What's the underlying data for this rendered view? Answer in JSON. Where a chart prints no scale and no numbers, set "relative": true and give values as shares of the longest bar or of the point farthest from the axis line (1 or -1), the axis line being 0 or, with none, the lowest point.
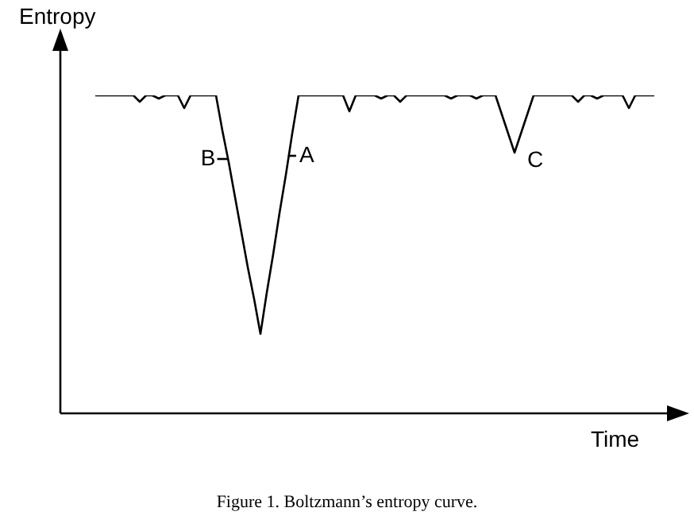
{
  "chart_data": {
    "type": "line",
    "relative": true,
    "xlabel": "Time",
    "ylabel": "Entropy",
    "marker": "none",
    "line_style": "solid",
    "categories": [
      null,
      null,
      null,
      null,
      null,
      null,
      null,
      null,
      null,
      null,
      null,
      null,
      null,
      null,
      null,
      null,
      null,
      null,
      null,
      null,
      null,
      null,
      null,
      null,
      null,
      null,
      null,
      null,
      null,
      null,
      null,
      null,
      null,
      null,
      null,
      null,
      null,
      null,
      null,
      null,
      null,
      null,
      null,
      null,
      null,
      null,
      null,
      null,
      null,
      null,
      null,
      null,
      null,
      null,
      null,
      null,
      null,
      null,
      null,
      null,
      null,
      null,
      null,
      null,
      null,
      null,
      null,
      null,
      null,
      null,
      null,
      null,
      null,
      null,
      null,
      null,
      null,
      null,
      null,
      null,
      null,
      null,
      null,
      null,
      null,
      null,
      null,
      null,
      null
    ],
    "series": [
      {
        "color": "#000000",
        "values": [
          1,
          1,
          1,
          1,
          1,
          1,
          1,
          0.98,
          1,
          1,
          0.99,
          1,
          1,
          1,
          0.96,
          1,
          1,
          1,
          1,
          1,
          0.89,
          0.79,
          0.68,
          0.57,
          0.46,
          0.36,
          0.25,
          0.38,
          0.5,
          0.63,
          0.75,
          0.88,
          1,
          1,
          1,
          1,
          1,
          1,
          1,
          1,
          0.95,
          1,
          1,
          1,
          1,
          0.99,
          1,
          1,
          0.98,
          1,
          1,
          1,
          1,
          1,
          1,
          1,
          0.99,
          1,
          1,
          1,
          0.99,
          1,
          1,
          1,
          0.94,
          0.88,
          0.82,
          0.88,
          0.94,
          1,
          1,
          1,
          1,
          1,
          1,
          1,
          0.98,
          1,
          1,
          0.99,
          1,
          1,
          1,
          1,
          0.96,
          1,
          1,
          1,
          1
        ]
      }
    ],
    "annotations": [
      "B",
      "A",
      "C",
      "Figure 1.  Boltzmann’s entropy curve."
    ]
  }
}
